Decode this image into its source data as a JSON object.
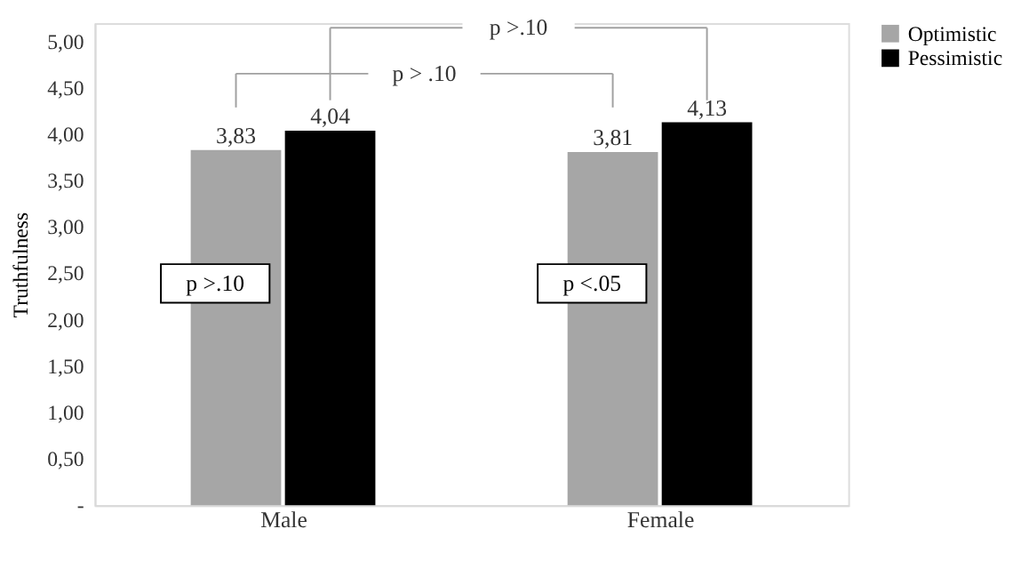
{
  "chart_data": {
    "type": "bar",
    "ylabel": "Truthfulness",
    "categories": [
      "Male",
      "Female"
    ],
    "series": [
      {
        "name": "Optimistic",
        "color": "#a6a6a6",
        "values": [
          3.83,
          3.81
        ],
        "value_labels": [
          "3,83",
          "3,81"
        ]
      },
      {
        "name": "Pessimistic",
        "color": "#000000",
        "values": [
          4.04,
          4.13
        ],
        "value_labels": [
          "4,04",
          "4,13"
        ]
      }
    ],
    "ylim": [
      0,
      5.2
    ],
    "yticks": [
      {
        "value": 0,
        "label": "-"
      },
      {
        "value": 0.5,
        "label": "0,50"
      },
      {
        "value": 1,
        "label": "1,00"
      },
      {
        "value": 1.5,
        "label": "1,50"
      },
      {
        "value": 2,
        "label": "2,00"
      },
      {
        "value": 2.5,
        "label": "2,50"
      },
      {
        "value": 3,
        "label": "3,00"
      },
      {
        "value": 3.5,
        "label": "3,50"
      },
      {
        "value": 4,
        "label": "4,00"
      },
      {
        "value": 4.5,
        "label": "4,50"
      },
      {
        "value": 5,
        "label": "5,00"
      }
    ],
    "annotations": [
      "p >.10",
      "p > .10",
      "p >.10",
      "p <.05"
    ],
    "grid": false,
    "legend": "right"
  }
}
